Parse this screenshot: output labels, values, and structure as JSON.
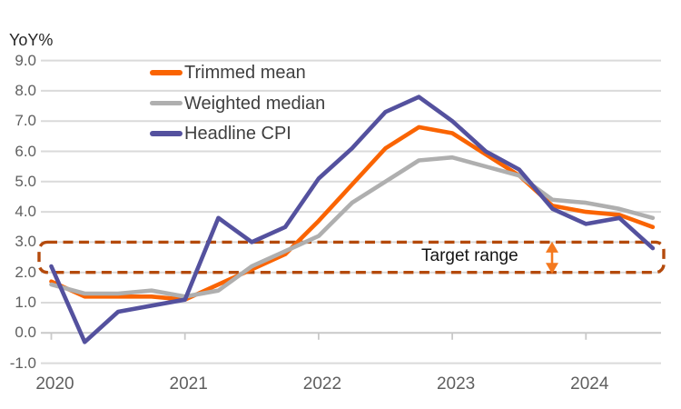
{
  "chart": {
    "y_axis_title": "YoY%",
    "target_range_label": "Target range",
    "chart_data": {
      "type": "line",
      "title": "",
      "xlabel": "",
      "ylabel": "YoY%",
      "x_tick_labels": [
        "2020",
        "2021",
        "2022",
        "2023",
        "2024"
      ],
      "x_frequency": "quarterly",
      "x": [
        "2020-Q1",
        "2020-Q2",
        "2020-Q3",
        "2020-Q4",
        "2021-Q1",
        "2021-Q2",
        "2021-Q3",
        "2021-Q4",
        "2022-Q1",
        "2022-Q2",
        "2022-Q3",
        "2022-Q4",
        "2023-Q1",
        "2023-Q2",
        "2023-Q3",
        "2023-Q4",
        "2024-Q1",
        "2024-Q2",
        "2024-Q3"
      ],
      "ylim": [
        -1.0,
        9.0
      ],
      "yticks": [
        9.0,
        8.0,
        7.0,
        6.0,
        5.0,
        4.0,
        3.0,
        2.0,
        1.0,
        0.0,
        -1.0
      ],
      "grid": "horizontal",
      "legend_position": "inside-top-left",
      "series": [
        {
          "name": "Trimmed mean",
          "color": "#FA6402",
          "values": [
            1.7,
            1.2,
            1.2,
            1.2,
            1.1,
            1.6,
            2.1,
            2.6,
            3.7,
            4.9,
            6.1,
            6.8,
            6.6,
            5.9,
            5.2,
            4.2,
            4.0,
            3.9,
            3.5
          ]
        },
        {
          "name": "Weighted median",
          "color": "#AFAFAF",
          "values": [
            1.6,
            1.3,
            1.3,
            1.4,
            1.2,
            1.4,
            2.2,
            2.7,
            3.2,
            4.3,
            5.0,
            5.7,
            5.8,
            5.5,
            5.2,
            4.4,
            4.3,
            4.1,
            3.8
          ]
        },
        {
          "name": "Headline CPI",
          "color": "#54519E",
          "values": [
            2.2,
            -0.3,
            0.7,
            0.9,
            1.1,
            3.8,
            3.0,
            3.5,
            5.1,
            6.1,
            7.3,
            7.8,
            7.0,
            6.0,
            5.4,
            4.1,
            3.6,
            3.8,
            2.8
          ]
        }
      ],
      "annotations": [
        {
          "label": "Target range",
          "type": "band",
          "from": 2.0,
          "to": 3.0,
          "border_color": "#B44A0C",
          "border_style": "dashed-rounded-rect",
          "arrow_color": "#F4791F"
        }
      ],
      "gridline_color": "#DADADA",
      "axis_label_color": "#5f5f5f"
    }
  }
}
